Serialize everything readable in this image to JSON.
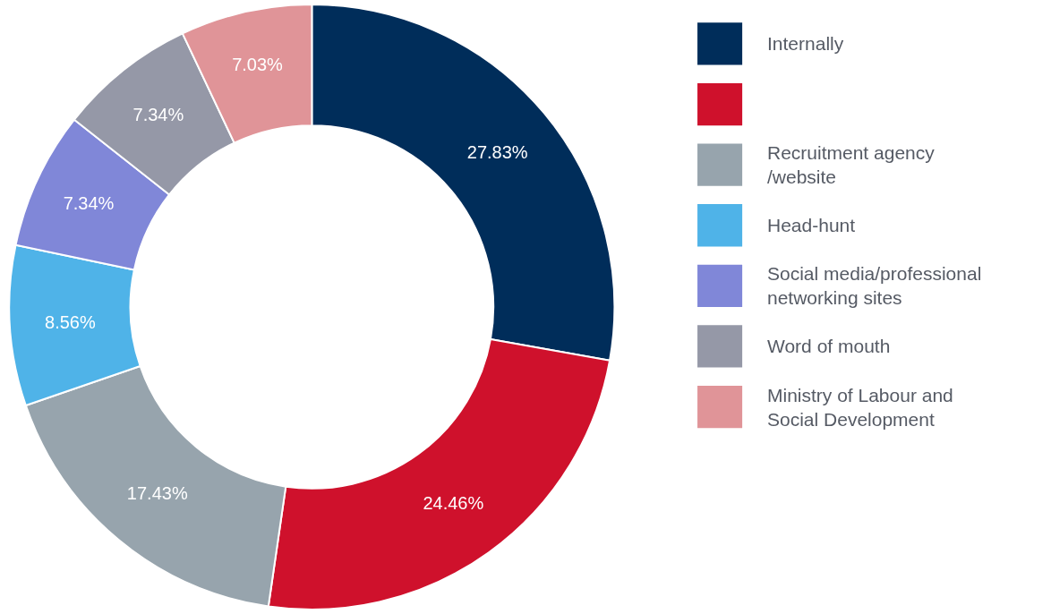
{
  "chart_data": {
    "type": "donut",
    "categories": [
      "Internally",
      null,
      "Recruitment agency\n/website",
      "Head-hunt",
      "Social media/professional\nnetworking sites",
      "Word of mouth",
      "Ministry of Labour and\nSocial Development"
    ],
    "values": [
      27.83,
      24.46,
      17.43,
      8.56,
      7.34,
      7.34,
      7.03
    ],
    "value_labels": [
      "27.83%",
      "24.46%",
      "17.43%",
      "8.56%",
      "7.34%",
      "7.34%",
      "7.03%"
    ],
    "colors": [
      "#002d5a",
      "#cf112c",
      "#97a4ad",
      "#4fb3e8",
      "#8087d8",
      "#9598a7",
      "#e09498"
    ],
    "legend": "right"
  }
}
